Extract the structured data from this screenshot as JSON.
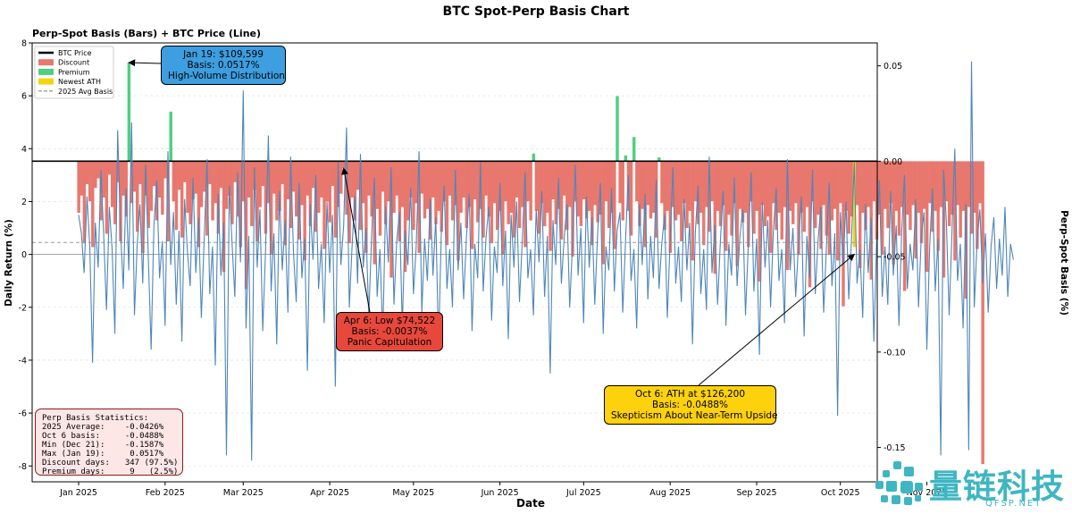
{
  "chart_data": {
    "type": "bar",
    "title": "BTC Spot-Perp Basis Chart",
    "subtitle": "Perp-Spot Basis (Bars) + BTC Price (Line)",
    "xlabel": "Date",
    "ylabel_left": "Daily Return (%)",
    "ylabel_right": "Perp-Spot Basis (%)",
    "ylim_left": [
      -8.6,
      8.0
    ],
    "ylim_right": [
      -0.168,
      0.062
    ],
    "yticks_left": [
      "8",
      "6",
      "4",
      "2",
      "0",
      "-2",
      "-4",
      "-6",
      "-8"
    ],
    "yticks_right": [
      "0.05",
      "0.00",
      "-0.05",
      "-0.10",
      "-0.15"
    ],
    "xticks": [
      "Jan 2025",
      "Feb 2025",
      "Mar 2025",
      "Apr 2025",
      "May 2025",
      "Jun 2025",
      "Jul 2025",
      "Aug 2025",
      "Sep 2025",
      "Oct 2025",
      "Nov 2025"
    ],
    "legend": {
      "placement": "top-left",
      "entries": [
        {
          "label": "BTC Price",
          "color": "#000000",
          "style": "line"
        },
        {
          "label": "Discount",
          "color": "#e8776e",
          "style": "patch"
        },
        {
          "label": "Premium",
          "color": "#4fcf81",
          "style": "patch"
        },
        {
          "label": "Newest ATH",
          "color": "#f4d40e",
          "style": "patch"
        },
        {
          "label": "2025 Avg Basis",
          "color": "#9e9e9e",
          "style": "dashed"
        }
      ]
    },
    "series": [
      {
        "name": "Basis",
        "axis": "right",
        "note": "daily perp-spot basis (%) — one value per day, Jan 1 to Nov 30 2025",
        "values": [
          -0.027,
          -0.018,
          -0.043,
          -0.012,
          -0.021,
          -0.045,
          -0.014,
          -0.009,
          -0.031,
          -0.019,
          -0.038,
          -0.007,
          -0.024,
          -0.033,
          -0.011,
          -0.042,
          -0.018,
          -0.029,
          0.0517,
          -0.022,
          -0.016,
          -0.037,
          -0.012,
          -0.048,
          -0.018,
          -0.035,
          -0.026,
          -0.013,
          -0.031,
          -0.019,
          -0.028,
          -0.009,
          -0.042,
          0.026,
          -0.021,
          -0.036,
          -0.015,
          -0.04,
          -0.011,
          -0.027,
          -0.033,
          -0.02,
          -0.017,
          -0.045,
          -0.024,
          -0.016,
          -0.039,
          -0.012,
          -0.031,
          -0.022,
          -0.038,
          -0.014,
          -0.058,
          -0.025,
          -0.018,
          -0.033,
          -0.011,
          -0.029,
          -0.045,
          -0.021,
          -0.067,
          -0.019,
          -0.034,
          -0.015,
          -0.042,
          -0.024,
          -0.013,
          -0.038,
          -0.022,
          -0.049,
          -0.017,
          -0.031,
          -0.026,
          -0.012,
          -0.044,
          -0.02,
          -0.035,
          -0.016,
          -0.029,
          -0.041,
          -0.023,
          -0.052,
          -0.018,
          -0.034,
          -0.014,
          -0.037,
          -0.027,
          -0.019,
          -0.046,
          -0.021,
          -0.032,
          -0.013,
          -0.04,
          -0.024,
          -0.017,
          -0.0037,
          -0.028,
          -0.043,
          -0.019,
          -0.031,
          -0.015,
          -0.036,
          -0.022,
          -0.048,
          -0.018,
          -0.029,
          -0.054,
          -0.025,
          -0.039,
          -0.016,
          -0.033,
          -0.021,
          -0.061,
          -0.027,
          -0.018,
          -0.042,
          -0.024,
          -0.058,
          -0.031,
          -0.019,
          -0.036,
          -0.022,
          -0.048,
          -0.017,
          -0.03,
          -0.025,
          -0.041,
          -0.019,
          -0.033,
          -0.026,
          -0.037,
          -0.021,
          -0.044,
          -0.018,
          -0.031,
          -0.023,
          -0.052,
          -0.027,
          -0.019,
          -0.035,
          -0.024,
          -0.046,
          -0.02,
          -0.032,
          -0.025,
          -0.04,
          -0.018,
          -0.029,
          -0.043,
          -0.022,
          -0.036,
          -0.026,
          -0.049,
          -0.021,
          -0.033,
          -0.027,
          -0.04,
          -0.019,
          -0.035,
          -0.024,
          -0.045,
          -0.021,
          -0.031,
          0.004,
          -0.026,
          -0.038,
          -0.022,
          -0.034,
          -0.027,
          -0.047,
          -0.02,
          -0.033,
          -0.025,
          -0.041,
          -0.018,
          -0.036,
          -0.024,
          -0.05,
          -0.021,
          -0.029,
          -0.034,
          -0.02,
          -0.03,
          -0.026,
          -0.044,
          -0.023,
          -0.032,
          -0.028,
          -0.054,
          -0.021,
          -0.035,
          -0.027,
          -0.046,
          0.0341,
          -0.022,
          -0.031,
          0.003,
          -0.026,
          -0.039,
          0.0127,
          -0.021,
          -0.034,
          -0.025,
          -0.045,
          -0.023,
          -0.03,
          -0.027,
          -0.04,
          0.002,
          -0.022,
          -0.036,
          -0.026,
          -0.048,
          -0.024,
          -0.031,
          -0.028,
          -0.042,
          -0.022,
          -0.035,
          -0.026,
          -0.052,
          -0.021,
          -0.033,
          -0.027,
          -0.044,
          -0.024,
          -0.037,
          -0.021,
          -0.059,
          -0.026,
          -0.034,
          -0.023,
          -0.047,
          -0.028,
          -0.039,
          -0.022,
          -0.055,
          -0.025,
          -0.032,
          -0.027,
          -0.045,
          -0.021,
          -0.038,
          -0.026,
          -0.063,
          -0.023,
          -0.034,
          -0.029,
          -0.048,
          -0.022,
          -0.036,
          -0.027,
          -0.041,
          -0.024,
          -0.057,
          -0.026,
          -0.033,
          -0.022,
          -0.049,
          -0.027,
          -0.037,
          -0.024,
          -0.066,
          -0.021,
          -0.035,
          -0.028,
          -0.046,
          -0.023,
          -0.039,
          -0.0488,
          -0.031,
          -0.025,
          -0.052,
          -0.022,
          -0.076,
          -0.026,
          -0.038,
          -0.029,
          -0.045,
          -0.023,
          -0.056,
          -0.027,
          -0.036,
          -0.024,
          -0.062,
          -0.021,
          -0.041,
          -0.028,
          -0.049,
          -0.025,
          -0.035,
          -0.022,
          -0.054,
          -0.026,
          -0.039,
          -0.024,
          -0.068,
          -0.028,
          -0.036,
          -0.023,
          -0.051,
          -0.027,
          -0.043,
          -0.025,
          -0.058,
          -0.022,
          -0.037,
          -0.026,
          -0.047,
          -0.024,
          -0.061,
          -0.021,
          -0.034,
          -0.028,
          -0.052,
          -0.023,
          -0.04,
          -0.026,
          -0.072,
          -0.024,
          -0.038,
          -0.027,
          -0.046,
          -0.022,
          -0.1587
        ]
      },
      {
        "name": "BTC Price",
        "axis": "left",
        "note": "line values in daily-return units (%) as drawn against the left axis",
        "values": [
          1.5,
          0.8,
          -0.7,
          2.2,
          0.3,
          -4.1,
          1.2,
          -0.5,
          3.2,
          0.7,
          -2.1,
          1.8,
          0.2,
          -3.0,
          4.7,
          0.9,
          -1.3,
          2.5,
          -0.6,
          5.0,
          -2.3,
          0.4,
          1.9,
          -1.1,
          3.4,
          -0.2,
          -3.6,
          1.1,
          2.8,
          -0.9,
          0.5,
          -2.7,
          3.9,
          -0.4,
          1.6,
          -1.9,
          0.9,
          -3.3,
          2.1,
          0.1,
          -1.2,
          2.9,
          -0.7,
          1.4,
          -2.4,
          0.6,
          3.6,
          -1.5,
          0.3,
          -4.2,
          2.3,
          -0.8,
          1.2,
          -7.6,
          2.6,
          0.4,
          -1.6,
          3.1,
          -0.3,
          6.2,
          -2.8,
          0.7,
          -7.8,
          3.3,
          -0.5,
          1.7,
          -2.9,
          0.2,
          4.5,
          -1.4,
          0.8,
          -3.4,
          2.4,
          -0.6,
          1.3,
          -2.2,
          3.7,
          0.1,
          -1.8,
          2.7,
          -0.9,
          0.6,
          -4.4,
          1.9,
          -0.2,
          3.0,
          -1.3,
          0.4,
          -2.6,
          2.0,
          -0.7,
          1.5,
          -5.0,
          3.5,
          -0.4,
          1.1,
          4.8,
          -2.0,
          0.3,
          2.2,
          -1.1,
          3.8,
          -0.5,
          1.0,
          -2.4,
          0.7,
          2.9,
          -1.6,
          0.2,
          -3.1,
          1.8,
          -0.3,
          3.3,
          -1.9,
          0.5,
          1.6,
          -2.7,
          0.9,
          -0.4,
          2.5,
          -1.5,
          0.3,
          3.9,
          -2.2,
          0.6,
          -1.0,
          2.1,
          -0.8,
          1.4,
          -3.5,
          0.8,
          2.6,
          -1.3,
          0.2,
          -2.0,
          3.2,
          -0.6,
          1.2,
          -1.7,
          0.7,
          2.3,
          -2.9,
          0.4,
          -0.9,
          3.5,
          -1.4,
          0.6,
          1.8,
          -2.5,
          0.3,
          -0.7,
          2.7,
          -1.2,
          0.9,
          -3.2,
          1.5,
          -0.5,
          2.0,
          -1.8,
          0.5,
          3.1,
          -0.9,
          0.2,
          -2.3,
          1.7,
          -0.3,
          2.4,
          -1.6,
          0.7,
          -4.5,
          1.3,
          -0.4,
          2.9,
          -1.1,
          0.6,
          1.9,
          -2.0,
          0.4,
          3.4,
          -0.8,
          1.0,
          -2.6,
          2.2,
          -0.5,
          1.4,
          -1.9,
          0.8,
          2.7,
          -3.0,
          0.3,
          -0.6,
          2.5,
          -1.4,
          0.9,
          1.6,
          -2.2,
          0.5,
          3.0,
          -1.0,
          0.2,
          -2.8,
          1.9,
          -0.4,
          2.3,
          -1.7,
          0.7,
          -0.9,
          2.8,
          -1.3,
          0.4,
          1.5,
          -2.4,
          0.6,
          3.3,
          -1.1,
          0.3,
          -1.8,
          2.1,
          -0.6,
          1.2,
          -3.4,
          0.8,
          2.6,
          -1.5,
          0.2,
          -2.1,
          3.7,
          -0.7,
          1.1,
          -1.9,
          0.5,
          2.4,
          -2.7,
          0.4,
          -0.8,
          2.9,
          -1.2,
          0.7,
          1.7,
          -2.3,
          0.3,
          3.1,
          -1.4,
          0.6,
          -3.8,
          2.0,
          -0.5,
          1.3,
          -2.0,
          0.9,
          2.5,
          -1.0,
          0.2,
          -2.6,
          3.6,
          -0.6,
          1.0,
          -1.6,
          0.4,
          2.2,
          -3.1,
          0.7,
          -0.9,
          3.2,
          -1.5,
          0.5,
          1.8,
          -2.2,
          0.3,
          2.7,
          -1.2,
          0.8,
          -6.1,
          1.6,
          -0.4,
          2.0,
          -1.7,
          0.6,
          3.5,
          -1.1,
          0.2,
          -2.4,
          1.9,
          -0.7,
          1.4,
          -3.3,
          0.5,
          2.8,
          -1.6,
          0.3,
          -1.9,
          2.4,
          -0.8,
          1.1,
          -2.7,
          0.9,
          3.0,
          -1.3,
          0.4,
          -0.6,
          2.1,
          -2.0,
          0.7,
          1.6,
          -3.6,
          0.3,
          2.5,
          -1.4,
          0.6,
          -7.6,
          3.2,
          1.2,
          -2.3,
          0.8,
          4.0,
          -1.0,
          0.4,
          -2.8,
          1.9,
          -7.4,
          7.3,
          -2.0,
          0.5,
          1.7,
          -1.1,
          0.8,
          -2.2,
          0.3,
          1.4,
          -1.3,
          0.6,
          -0.8,
          1.8,
          -1.6,
          0.4,
          -0.2
        ]
      }
    ],
    "reference_lines": [
      {
        "axis": "right",
        "value": 0.0,
        "style": "solid-black"
      },
      {
        "axis": "right",
        "value": -0.0426,
        "style": "dashed-gray",
        "label": "2025 Avg Basis"
      },
      {
        "axis": "left",
        "value": 0,
        "style": "thin-gray"
      }
    ],
    "highlighted_days": {
      "premium_color": "#4fcf81",
      "discount_color": "#e8776e",
      "ath_color": "#f4d40e",
      "ath_day_index": 278
    }
  },
  "callouts": {
    "jan": {
      "line1": "Jan 19: $109,599",
      "line2": "Basis: 0.0517%",
      "line3": "High-Volume Distribution",
      "color": "#3d9ee0",
      "target_day_index": 18,
      "target_value": 0.0517
    },
    "apr": {
      "line1": "Apr 6: Low $74,522",
      "line2": "Basis: -0.0037%",
      "line3": "Panic Capitulation",
      "color": "#e8483c",
      "target_day_index": 95,
      "target_value": -0.0037
    },
    "oct": {
      "line1": "Oct 6: ATH at $126,200",
      "line2": "Basis: -0.0488%",
      "line3": "Skepticism About Near-Term Upside",
      "color": "#fdd10c",
      "target_day_index": 278,
      "target_value": -0.0488
    }
  },
  "stats": {
    "title": "Perp Basis Statistics:",
    "rows": [
      {
        "k": "2025 Average:",
        "v": "  -0.0426%"
      },
      {
        "k": "Oct 6 basis:",
        "v": "  -0.0488%"
      },
      {
        "k": "Min (Dec 21):",
        "v": "  -0.1587%"
      },
      {
        "k": "Max (Jan 19):",
        "v": "   0.0517%"
      },
      {
        "k": "Discount days:",
        "v": "  347 (97.5%)"
      },
      {
        "k": "Premium days:",
        "v": "   9   (2.5%)"
      }
    ]
  },
  "watermark": {
    "cn": "量链科技",
    "en": "QFSP.NET",
    "color": "#3fb6c2"
  }
}
